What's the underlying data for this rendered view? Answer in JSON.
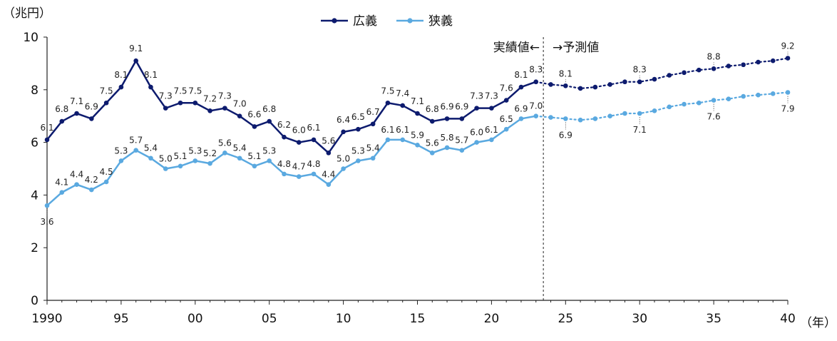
{
  "chart_data": {
    "type": "line",
    "ylabel": "（兆円）",
    "xlabel": "（年）",
    "ylim": [
      0,
      10
    ],
    "xlim": [
      1990,
      2040
    ],
    "y_ticks": [
      "0",
      "2",
      "4",
      "6",
      "8",
      "10"
    ],
    "x_ticks": [
      {
        "year": 1990,
        "label": "1990"
      },
      {
        "year": 1995,
        "label": "95"
      },
      {
        "year": 2000,
        "label": "00"
      },
      {
        "year": 2005,
        "label": "05"
      },
      {
        "year": 2010,
        "label": "10"
      },
      {
        "year": 2015,
        "label": "15"
      },
      {
        "year": 2020,
        "label": "20"
      },
      {
        "year": 2025,
        "label": "25"
      },
      {
        "year": 2030,
        "label": "30"
      },
      {
        "year": 2035,
        "label": "35"
      },
      {
        "year": 2040,
        "label": "40"
      }
    ],
    "grid": false,
    "legend_position": "top-center",
    "divider_year": 2023.5,
    "annotations": {
      "actual": "実績値←",
      "forecast": "→予測値"
    },
    "series": [
      {
        "name": "広義",
        "color": "#0d1b6e",
        "actual": {
          "x": [
            1990,
            1991,
            1992,
            1993,
            1994,
            1995,
            1996,
            1997,
            1998,
            1999,
            2000,
            2001,
            2002,
            2003,
            2004,
            2005,
            2006,
            2007,
            2008,
            2009,
            2010,
            2011,
            2012,
            2013,
            2014,
            2015,
            2016,
            2017,
            2018,
            2019,
            2020,
            2021,
            2022,
            2023
          ],
          "y": [
            6.1,
            6.8,
            7.1,
            6.9,
            7.5,
            8.1,
            9.1,
            8.1,
            7.3,
            7.5,
            7.5,
            7.2,
            7.3,
            7.0,
            6.6,
            6.8,
            6.2,
            6.0,
            6.1,
            5.6,
            6.4,
            6.5,
            6.7,
            7.5,
            7.4,
            7.1,
            6.8,
            6.9,
            6.9,
            7.3,
            7.3,
            7.6,
            8.1,
            8.3
          ]
        },
        "forecast": {
          "x": [
            2024,
            2025,
            2026,
            2027,
            2028,
            2029,
            2030,
            2031,
            2032,
            2033,
            2034,
            2035,
            2036,
            2037,
            2038,
            2039,
            2040
          ],
          "y": [
            8.2,
            8.15,
            8.05,
            8.1,
            8.2,
            8.3,
            8.3,
            8.4,
            8.55,
            8.65,
            8.75,
            8.8,
            8.9,
            8.95,
            9.05,
            9.1,
            9.2
          ]
        },
        "labels": [
          {
            "x": 1990,
            "v": "6.1"
          },
          {
            "x": 1991,
            "v": "6.8"
          },
          {
            "x": 1992,
            "v": "7.1"
          },
          {
            "x": 1993,
            "v": "6.9"
          },
          {
            "x": 1994,
            "v": "7.5"
          },
          {
            "x": 1995,
            "v": "8.1"
          },
          {
            "x": 1996,
            "v": "9.1"
          },
          {
            "x": 1997,
            "v": "8.1"
          },
          {
            "x": 1998,
            "v": "7.3"
          },
          {
            "x": 1999,
            "v": "7.5"
          },
          {
            "x": 2000,
            "v": "7.5"
          },
          {
            "x": 2001,
            "v": "7.2"
          },
          {
            "x": 2002,
            "v": "7.3"
          },
          {
            "x": 2003,
            "v": "7.0"
          },
          {
            "x": 2004,
            "v": "6.6"
          },
          {
            "x": 2005,
            "v": "6.8"
          },
          {
            "x": 2006,
            "v": "6.2"
          },
          {
            "x": 2007,
            "v": "6.0"
          },
          {
            "x": 2008,
            "v": "6.1"
          },
          {
            "x": 2009,
            "v": "5.6"
          },
          {
            "x": 2010,
            "v": "6.4"
          },
          {
            "x": 2011,
            "v": "6.5"
          },
          {
            "x": 2012,
            "v": "6.7"
          },
          {
            "x": 2013,
            "v": "7.5"
          },
          {
            "x": 2014,
            "v": "7.4"
          },
          {
            "x": 2015,
            "v": "7.1"
          },
          {
            "x": 2016,
            "v": "6.8"
          },
          {
            "x": 2017,
            "v": "6.9"
          },
          {
            "x": 2018,
            "v": "6.9"
          },
          {
            "x": 2019,
            "v": "7.3"
          },
          {
            "x": 2020,
            "v": "7.3"
          },
          {
            "x": 2021,
            "v": "7.6"
          },
          {
            "x": 2022,
            "v": "8.1"
          },
          {
            "x": 2023,
            "v": "8.3"
          },
          {
            "x": 2025,
            "v": "8.1"
          },
          {
            "x": 2030,
            "v": "8.3"
          },
          {
            "x": 2035,
            "v": "8.8"
          },
          {
            "x": 2040,
            "v": "9.2"
          }
        ]
      },
      {
        "name": "狭義",
        "color": "#5aa9e0",
        "actual": {
          "x": [
            1990,
            1991,
            1992,
            1993,
            1994,
            1995,
            1996,
            1997,
            1998,
            1999,
            2000,
            2001,
            2002,
            2003,
            2004,
            2005,
            2006,
            2007,
            2008,
            2009,
            2010,
            2011,
            2012,
            2013,
            2014,
            2015,
            2016,
            2017,
            2018,
            2019,
            2020,
            2021,
            2022,
            2023
          ],
          "y": [
            3.6,
            4.1,
            4.4,
            4.2,
            4.5,
            5.3,
            5.7,
            5.4,
            5.0,
            5.1,
            5.3,
            5.2,
            5.6,
            5.4,
            5.1,
            5.3,
            4.8,
            4.7,
            4.8,
            4.4,
            5.0,
            5.3,
            5.4,
            6.1,
            6.1,
            5.9,
            5.6,
            5.8,
            5.7,
            6.0,
            6.1,
            6.5,
            6.9,
            7.0
          ]
        },
        "forecast": {
          "x": [
            2024,
            2025,
            2026,
            2027,
            2028,
            2029,
            2030,
            2031,
            2032,
            2033,
            2034,
            2035,
            2036,
            2037,
            2038,
            2039,
            2040
          ],
          "y": [
            6.95,
            6.9,
            6.85,
            6.9,
            7.0,
            7.1,
            7.1,
            7.2,
            7.35,
            7.45,
            7.5,
            7.6,
            7.65,
            7.75,
            7.8,
            7.85,
            7.9
          ]
        },
        "labels": [
          {
            "x": 1990,
            "v": "3.6"
          },
          {
            "x": 1991,
            "v": "4.1"
          },
          {
            "x": 1992,
            "v": "4.4"
          },
          {
            "x": 1993,
            "v": "4.2"
          },
          {
            "x": 1994,
            "v": "4.5"
          },
          {
            "x": 1995,
            "v": "5.3"
          },
          {
            "x": 1996,
            "v": "5.7"
          },
          {
            "x": 1997,
            "v": "5.4"
          },
          {
            "x": 1998,
            "v": "5.0"
          },
          {
            "x": 1999,
            "v": "5.1"
          },
          {
            "x": 2000,
            "v": "5.3"
          },
          {
            "x": 2001,
            "v": "5.2"
          },
          {
            "x": 2002,
            "v": "5.6"
          },
          {
            "x": 2003,
            "v": "5.4"
          },
          {
            "x": 2004,
            "v": "5.1"
          },
          {
            "x": 2005,
            "v": "5.3"
          },
          {
            "x": 2006,
            "v": "4.8"
          },
          {
            "x": 2007,
            "v": "4.7"
          },
          {
            "x": 2008,
            "v": "4.8"
          },
          {
            "x": 2009,
            "v": "4.4"
          },
          {
            "x": 2010,
            "v": "5.0"
          },
          {
            "x": 2011,
            "v": "5.3"
          },
          {
            "x": 2012,
            "v": "5.4"
          },
          {
            "x": 2013,
            "v": "6.1"
          },
          {
            "x": 2014,
            "v": "6.1"
          },
          {
            "x": 2015,
            "v": "5.9"
          },
          {
            "x": 2016,
            "v": "5.6"
          },
          {
            "x": 2017,
            "v": "5.8"
          },
          {
            "x": 2018,
            "v": "5.7"
          },
          {
            "x": 2019,
            "v": "6.0"
          },
          {
            "x": 2020,
            "v": "6.1"
          },
          {
            "x": 2021,
            "v": "6.5"
          },
          {
            "x": 2022,
            "v": "6.9"
          },
          {
            "x": 2023,
            "v": "7.0"
          },
          {
            "x": 2025,
            "v": "6.9"
          },
          {
            "x": 2030,
            "v": "7.1"
          },
          {
            "x": 2035,
            "v": "7.6"
          },
          {
            "x": 2040,
            "v": "7.9"
          }
        ]
      }
    ]
  }
}
